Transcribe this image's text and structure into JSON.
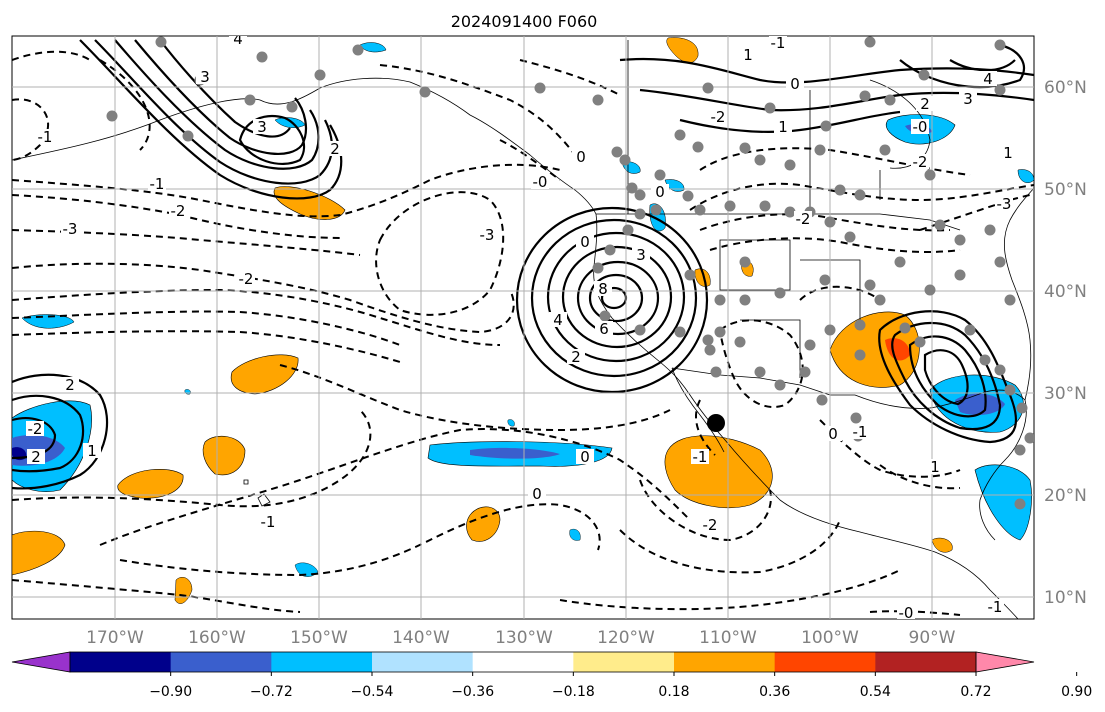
{
  "title": "2024091400 F060",
  "lon_ticks": [
    "170°W",
    "160°W",
    "150°W",
    "140°W",
    "130°W",
    "120°W",
    "110°W",
    "100°W",
    "90°W"
  ],
  "lat_ticks": [
    "60°N",
    "50°N",
    "40°N",
    "30°N",
    "20°N",
    "10°N"
  ],
  "colorbar": {
    "tick_labels": [
      "−0.90",
      "−0.72",
      "−0.54",
      "−0.36",
      "−0.18",
      "0.18",
      "0.36",
      "0.54",
      "0.72",
      "0.90"
    ],
    "colors": [
      "#9932cc",
      "#00008b",
      "#3a5fcd",
      "#00bfff",
      "#b0e2ff",
      "#ffffff",
      "#ffec8b",
      "#ffa500",
      "#ff4500",
      "#b22222",
      "#ff88aa"
    ]
  },
  "shading_colors": {
    "orange": "#ffa500",
    "lightblue": "#00bfff",
    "blue": "#3a5fcd",
    "red": "#ff4500"
  },
  "contour_labels": [
    {
      "text": "4"
    },
    {
      "text": "3"
    },
    {
      "text": "3"
    },
    {
      "text": "2"
    },
    {
      "text": "1"
    },
    {
      "text": "-1"
    },
    {
      "text": "-1"
    },
    {
      "text": "-2"
    },
    {
      "text": "-3"
    },
    {
      "text": "-2"
    },
    {
      "text": "-3"
    },
    {
      "text": "0"
    },
    {
      "text": "-0"
    },
    {
      "text": "8"
    },
    {
      "text": "6"
    },
    {
      "text": "4"
    },
    {
      "text": "2"
    },
    {
      "text": "3"
    },
    {
      "text": "0"
    },
    {
      "text": "1"
    },
    {
      "text": "-2"
    },
    {
      "text": "-2"
    },
    {
      "text": "0"
    },
    {
      "text": "0"
    },
    {
      "text": "2"
    },
    {
      "text": "3"
    },
    {
      "text": "4"
    },
    {
      "text": "-0"
    },
    {
      "text": "-2"
    },
    {
      "text": "-3"
    },
    {
      "text": "1"
    },
    {
      "text": "-1"
    },
    {
      "text": "2"
    },
    {
      "text": "-2"
    },
    {
      "text": "2"
    },
    {
      "text": "1"
    },
    {
      "text": "0"
    },
    {
      "text": "-1"
    },
    {
      "text": "1"
    },
    {
      "text": "-1"
    },
    {
      "text": "-2"
    },
    {
      "text": "0"
    },
    {
      "text": "-1"
    },
    {
      "text": "0"
    },
    {
      "text": "-0"
    },
    {
      "text": "-1"
    }
  ]
}
